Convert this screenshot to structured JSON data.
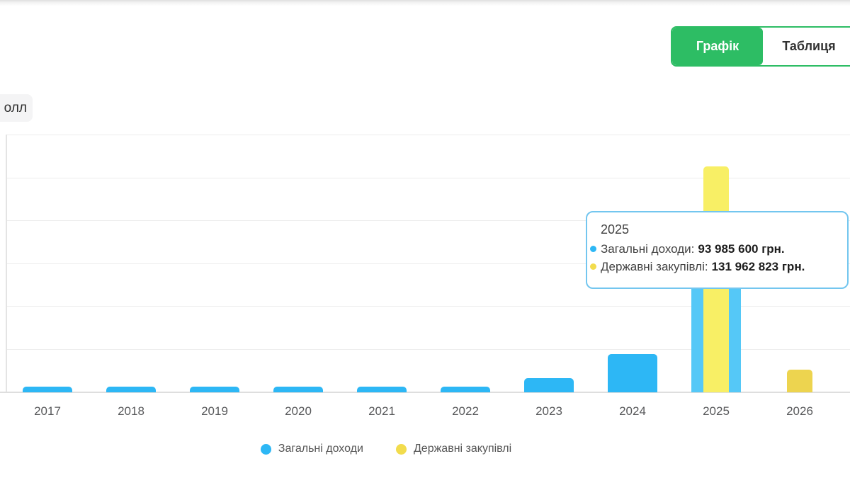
{
  "view_toggle": {
    "options": [
      {
        "label": "Графік",
        "active": true
      },
      {
        "label": "Таблиця",
        "active": false
      }
    ],
    "accent_color": "#2dbd64"
  },
  "filter_chip": {
    "label": "олл"
  },
  "tooltip": {
    "title": "2025",
    "rows": [
      {
        "label": "Загальні доходи:",
        "value": "93 985 600 грн.",
        "color": "#2db7f5"
      },
      {
        "label": "Державні закупівлі:",
        "value": "131 962 823 грн.",
        "color": "#f2dc4d"
      }
    ],
    "border_color": "#73c6ef"
  },
  "legend": [
    {
      "label": "Загальні доходи",
      "color": "#2db7f5"
    },
    {
      "label": "Державні закупівлі",
      "color": "#f2dc4d"
    }
  ],
  "chart_data": {
    "type": "bar",
    "title": "",
    "xlabel": "",
    "ylabel": "",
    "categories": [
      "2017",
      "2018",
      "2019",
      "2020",
      "2021",
      "2022",
      "2023",
      "2024",
      "2025",
      "2026"
    ],
    "series": [
      {
        "name": "Загальні доходи",
        "color": "#2db7f5",
        "hover_color": "#55c8f7",
        "values": [
          3300000,
          3300000,
          3300000,
          3300000,
          3300000,
          3300000,
          8300000,
          22300000,
          93985600,
          0
        ]
      },
      {
        "name": "Державні закупівлі",
        "color": "#edd44f",
        "hover_color": "#f8ef65",
        "values": [
          0,
          0,
          0,
          0,
          0,
          0,
          0,
          0,
          131962823,
          13200000
        ]
      }
    ],
    "ylim": [
      0,
      150000000
    ],
    "grid_step": 25000000,
    "grid": true,
    "hovered_category": "2025",
    "legend_position": "bottom"
  }
}
